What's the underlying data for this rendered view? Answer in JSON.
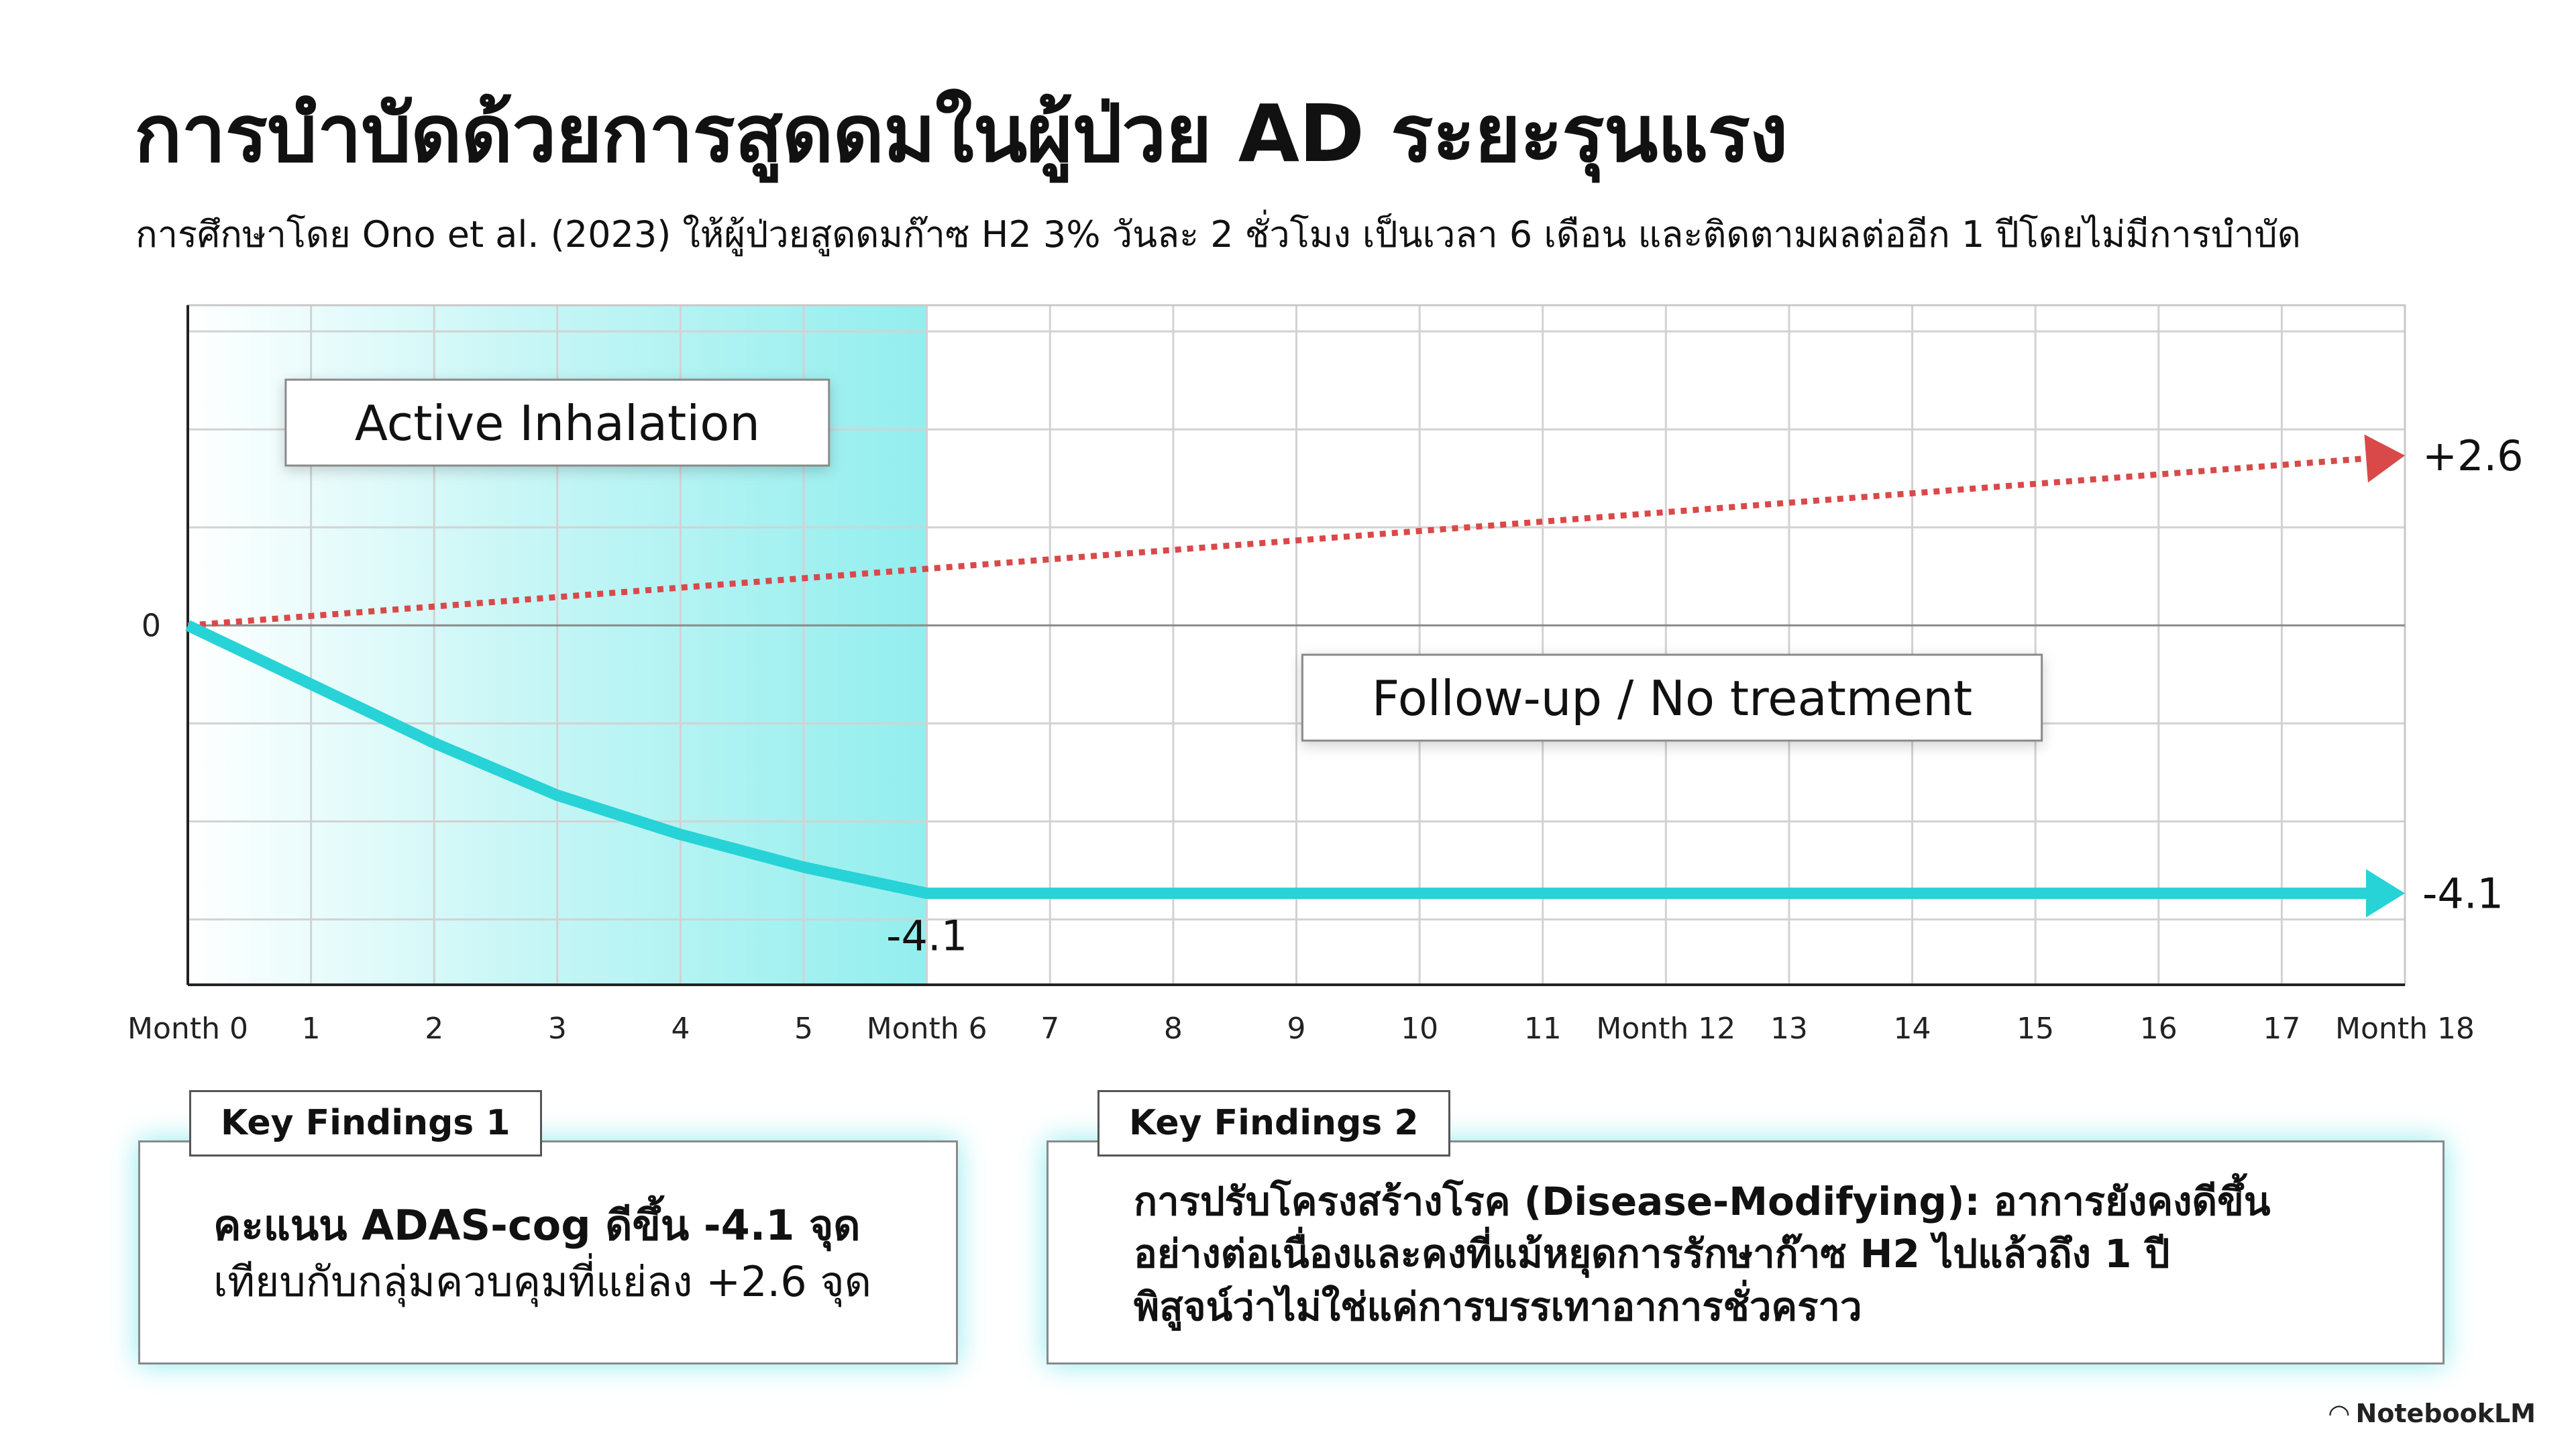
{
  "title": "การบำบัดด้วยการสูดดมในผู้ป่วย AD ระยะรุนแรง",
  "subtitle": "การศึกษาโดย Ono et al. (2023) ให้ผู้ป่วยสูดดมก๊าซ H2 3% วันละ 2 ชั่วโมง เป็นเวลา 6 เดือน และติดตามผลต่ออีก 1 ปีโดยไม่มีการบำบัด",
  "chart_data": {
    "type": "line",
    "xlim": [
      0,
      18
    ],
    "ylim": [
      -5.5,
      4.9
    ],
    "grid": true,
    "x_tick_labels": [
      "Month 0",
      "1",
      "2",
      "3",
      "4",
      "5",
      "Month 6",
      "7",
      "8",
      "9",
      "10",
      "11",
      "Month 12",
      "13",
      "14",
      "15",
      "16",
      "17",
      "Month 18"
    ],
    "y_tick_labels": [
      {
        "value": 0,
        "label": "0"
      }
    ],
    "phases": [
      {
        "label": "Active Inhalation",
        "x_start": 0,
        "x_end": 6,
        "color": "#9ff0f0"
      },
      {
        "label": "Follow-up / No treatment",
        "x_start": 6,
        "x_end": 18
      }
    ],
    "series": [
      {
        "style": "dotted",
        "color": "#d9494a",
        "x": [
          0,
          18
        ],
        "y": [
          0,
          2.6
        ],
        "end_label": "+2.6"
      },
      {
        "style": "solid",
        "color": "#27d3d6",
        "x": [
          0,
          1,
          2,
          3,
          4,
          5,
          6,
          18
        ],
        "y": [
          0,
          -0.9,
          -1.8,
          -2.6,
          -3.2,
          -3.7,
          -4.1,
          -4.1
        ],
        "point_label": {
          "x": 6,
          "label": "-4.1"
        },
        "end_label": "-4.1"
      }
    ]
  },
  "findings": [
    {
      "tab": "Key Findings 1",
      "bold_line": "คะแนน ADAS-cog ดีขึ้น -4.1 จุด",
      "lines": [
        "เทียบกับกลุ่มควบคุมที่แย่ลง +2.6 จุด"
      ]
    },
    {
      "tab": "Key Findings 2",
      "bold_lines": [
        "การปรับโครงสร้างโรค (Disease-Modifying): อาการยังคงดีขึ้น",
        "อย่างต่อเนื่องและคงที่แม้หยุดการรักษาก๊าซ H2 ไปแล้วถึง 1 ปี",
        "พิสูจน์ว่าไม่ใช่แค่การบรรเทาอาการชั่วคราว"
      ]
    }
  ],
  "watermark": "NotebookLM"
}
